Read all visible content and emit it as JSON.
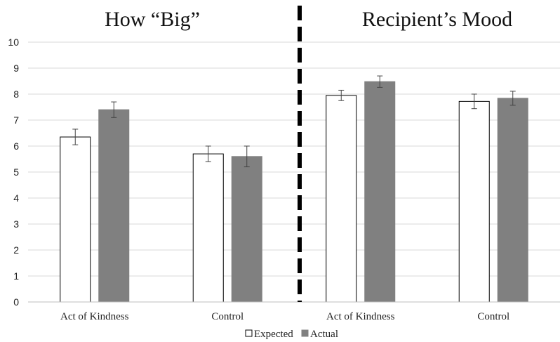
{
  "chart_data": {
    "type": "bar",
    "panel_titles": [
      "How “Big”",
      "Recipient’s Mood"
    ],
    "categories": [
      "Act of Kindness",
      "Control",
      "Act of Kindness",
      "Control"
    ],
    "series": [
      {
        "name": "Expected",
        "values": [
          6.35,
          5.7,
          7.95,
          7.72
        ],
        "errors": [
          0.3,
          0.3,
          0.2,
          0.28
        ],
        "color": "#ffffff"
      },
      {
        "name": "Actual",
        "values": [
          7.4,
          5.6,
          8.48,
          7.84
        ],
        "errors": [
          0.3,
          0.4,
          0.22,
          0.27
        ],
        "color": "#808080"
      }
    ],
    "ylim": [
      0,
      10
    ],
    "yticks": [
      "0",
      "1",
      "2",
      "3",
      "4",
      "5",
      "6",
      "7",
      "8",
      "9",
      "10"
    ],
    "grid": true,
    "legend_position": "bottom",
    "divider": "dashed vertical line between panels"
  }
}
